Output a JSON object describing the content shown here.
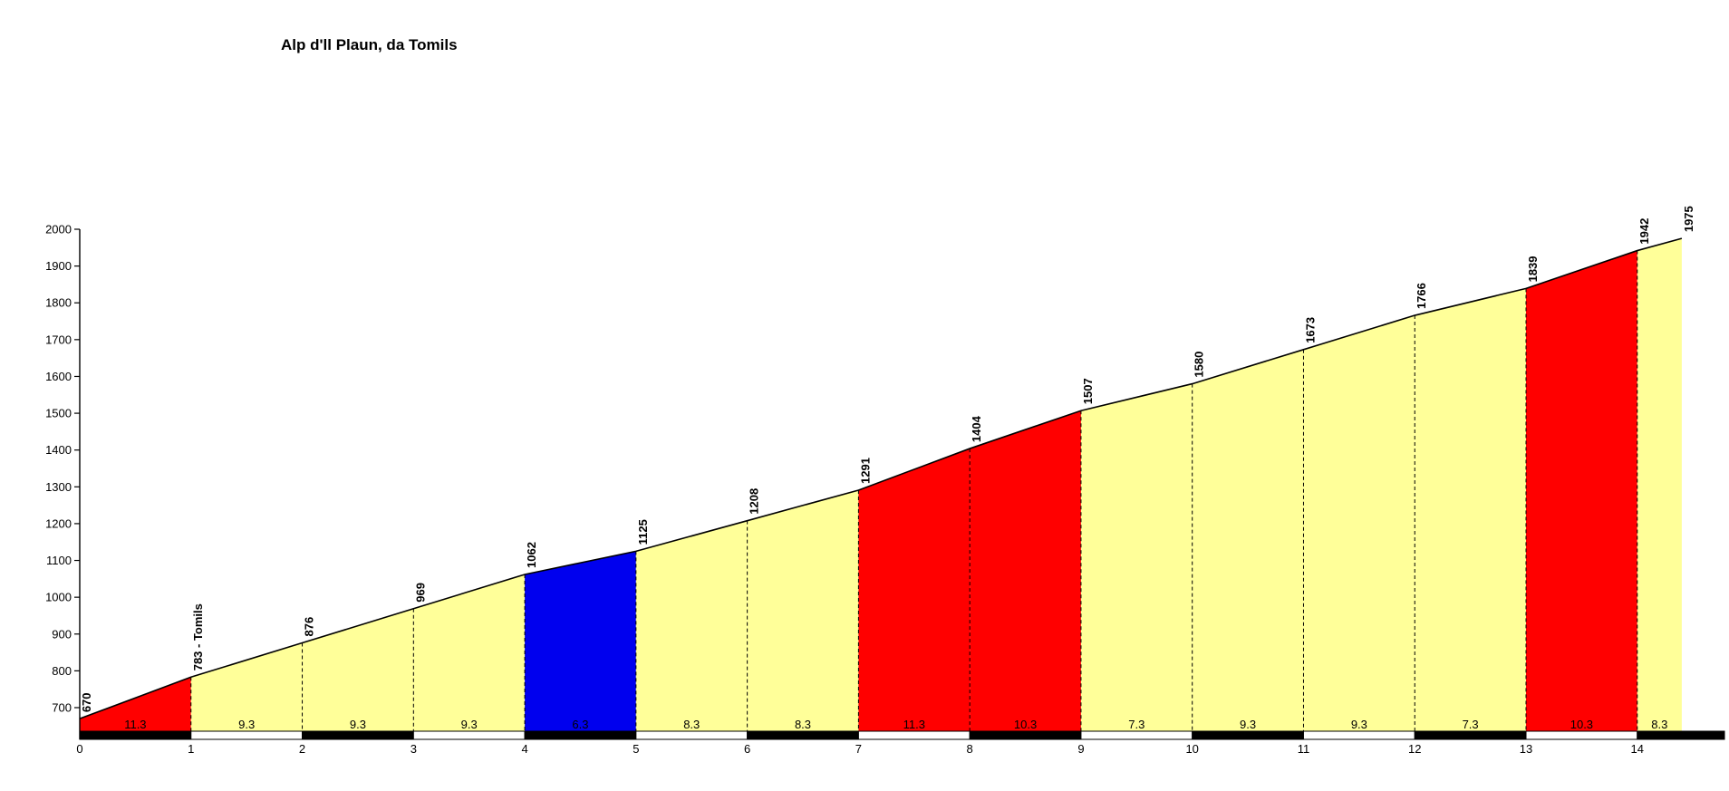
{
  "chart_data": {
    "type": "area",
    "title": "Alp d'll Plaun, da Tomils",
    "x_unit": "km",
    "y_unit": "m",
    "x_ticks": [
      "0",
      "1",
      "2",
      "3",
      "4",
      "5",
      "6",
      "7",
      "8",
      "9",
      "10",
      "11",
      "12",
      "13",
      "14"
    ],
    "y_ticks": [
      "700",
      "800",
      "900",
      "1000",
      "1100",
      "1200",
      "1300",
      "1400",
      "1500",
      "1600",
      "1700",
      "1800",
      "1900",
      "2000"
    ],
    "xlim": [
      0,
      14.8
    ],
    "ylim": [
      640,
      2000
    ],
    "grid": "off",
    "boundaries": [
      {
        "km": 0,
        "elevation": 670,
        "label": "670"
      },
      {
        "km": 1,
        "elevation": 783,
        "label": "783 - Tomils"
      },
      {
        "km": 2,
        "elevation": 876,
        "label": "876"
      },
      {
        "km": 3,
        "elevation": 969,
        "label": "969"
      },
      {
        "km": 4,
        "elevation": 1062,
        "label": "1062"
      },
      {
        "km": 5,
        "elevation": 1125,
        "label": "1125"
      },
      {
        "km": 6,
        "elevation": 1208,
        "label": "1208"
      },
      {
        "km": 7,
        "elevation": 1291,
        "label": "1291"
      },
      {
        "km": 8,
        "elevation": 1404,
        "label": "1404"
      },
      {
        "km": 9,
        "elevation": 1507,
        "label": "1507"
      },
      {
        "km": 10,
        "elevation": 1580,
        "label": "1580"
      },
      {
        "km": 11,
        "elevation": 1673,
        "label": "1673"
      },
      {
        "km": 12,
        "elevation": 1766,
        "label": "1766"
      },
      {
        "km": 13,
        "elevation": 1839,
        "label": "1839"
      },
      {
        "km": 14,
        "elevation": 1942,
        "label": "1942"
      },
      {
        "km": 14.4,
        "elevation": 1975,
        "label": "1975"
      }
    ],
    "segments": [
      {
        "from": 0,
        "to": 1,
        "gradient": "11.3",
        "color": "red"
      },
      {
        "from": 1,
        "to": 2,
        "gradient": "9.3",
        "color": "yellow"
      },
      {
        "from": 2,
        "to": 3,
        "gradient": "9.3",
        "color": "yellow"
      },
      {
        "from": 3,
        "to": 4,
        "gradient": "9.3",
        "color": "yellow"
      },
      {
        "from": 4,
        "to": 5,
        "gradient": "6.3",
        "color": "blue"
      },
      {
        "from": 5,
        "to": 6,
        "gradient": "8.3",
        "color": "yellow"
      },
      {
        "from": 6,
        "to": 7,
        "gradient": "8.3",
        "color": "yellow"
      },
      {
        "from": 7,
        "to": 8,
        "gradient": "11.3",
        "color": "red"
      },
      {
        "from": 8,
        "to": 9,
        "gradient": "10.3",
        "color": "red"
      },
      {
        "from": 9,
        "to": 10,
        "gradient": "7.3",
        "color": "yellow"
      },
      {
        "from": 10,
        "to": 11,
        "gradient": "9.3",
        "color": "yellow"
      },
      {
        "from": 11,
        "to": 12,
        "gradient": "9.3",
        "color": "yellow"
      },
      {
        "from": 12,
        "to": 13,
        "gradient": "7.3",
        "color": "yellow"
      },
      {
        "from": 13,
        "to": 14,
        "gradient": "10.3",
        "color": "red"
      },
      {
        "from": 14,
        "to": 14.4,
        "gradient": "8.3",
        "color": "yellow"
      }
    ],
    "palette": {
      "red": "#ff0000",
      "yellow": "#ffff99",
      "blue": "#0000ee",
      "outline": "#000000",
      "background": "#ffffff",
      "ruler_black": "#000000",
      "ruler_white": "#ffffff"
    },
    "ruler_first_block": "black"
  }
}
